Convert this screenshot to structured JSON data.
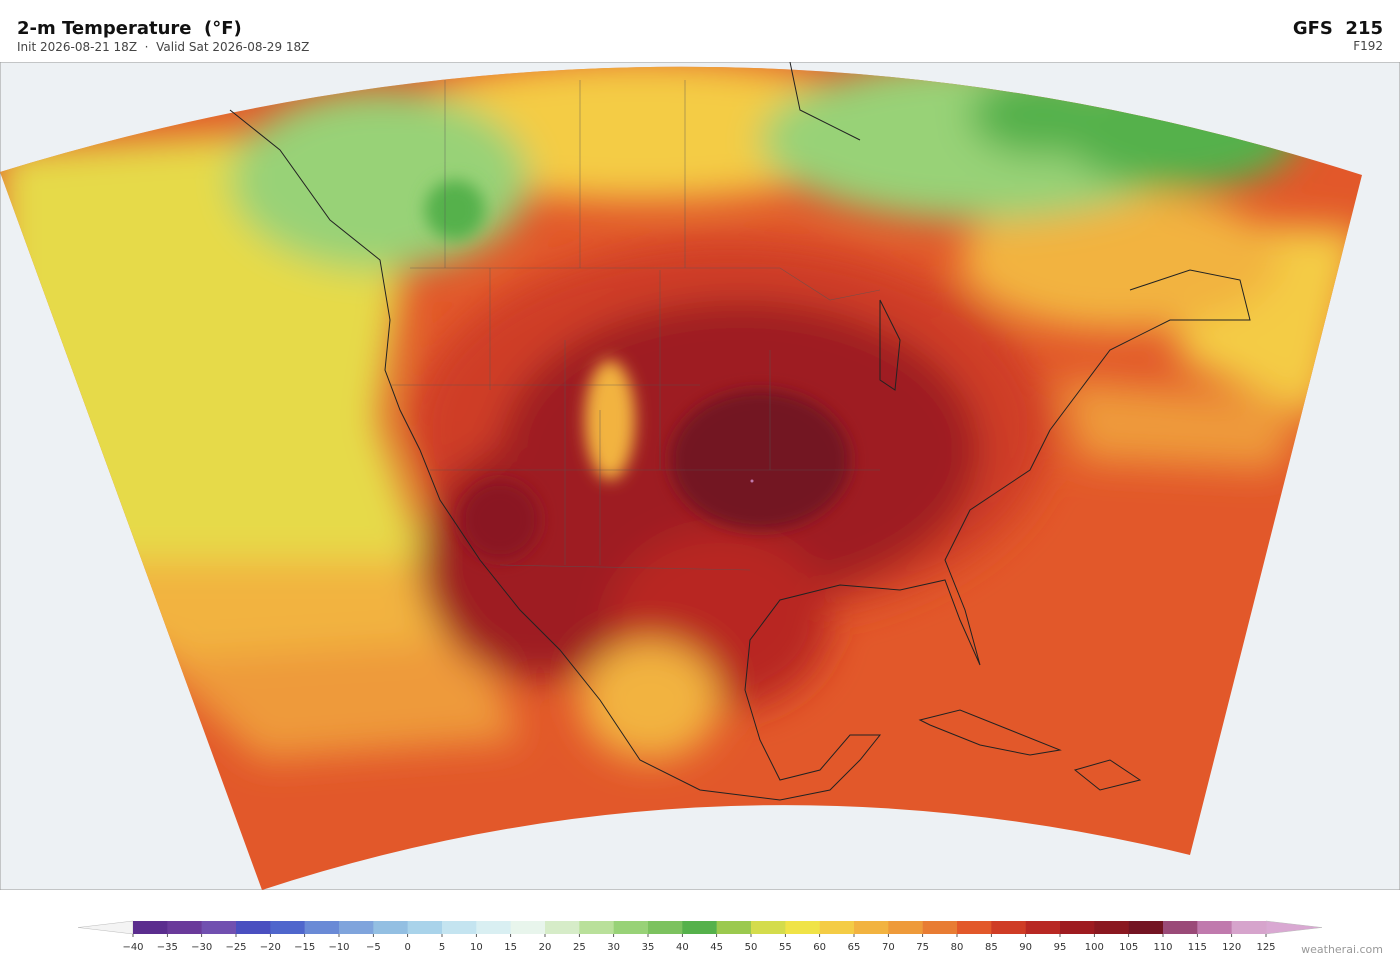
{
  "header": {
    "title": "2-m Temperature  (°F)",
    "subtitle": "Init 2026-08-21 18Z  ·  Valid Sat 2026-08-29 18Z",
    "model": "GFS  215",
    "forecast_hour": "F192"
  },
  "colorbar": {
    "ticks": [
      {
        "value": -40,
        "label": "−40"
      },
      {
        "value": -35,
        "label": "−35"
      },
      {
        "value": -30,
        "label": "−30"
      },
      {
        "value": -25,
        "label": "−25"
      },
      {
        "value": -20,
        "label": "−20"
      },
      {
        "value": -15,
        "label": "−15"
      },
      {
        "value": -10,
        "label": "−10"
      },
      {
        "value": -5,
        "label": "−5"
      },
      0,
      5,
      10,
      15,
      20,
      25,
      30,
      35,
      40,
      45,
      50,
      55,
      60,
      65,
      70,
      75,
      80,
      85,
      90,
      95,
      100,
      105,
      110,
      115,
      120,
      125
    ],
    "colors": [
      "#5b2d8e",
      "#6a3a9a",
      "#7150b0",
      "#4a4fc0",
      "#4f66cc",
      "#6a8ad6",
      "#7fa4dc",
      "#93bfe2",
      "#a9d3ea",
      "#c4e4f0",
      "#d9eff2",
      "#e8f5ec",
      "#d6ecc8",
      "#b9e09a",
      "#98d277",
      "#7cc25f",
      "#55b14b",
      "#9bc94e",
      "#d4dc4c",
      "#f0e347",
      "#f4cc45",
      "#f2b340",
      "#ee9a3a",
      "#e87c33",
      "#e2582a",
      "#cf3c25",
      "#b82823",
      "#9e1b20",
      "#8a1820",
      "#731422",
      "#9a4a78",
      "#c07aad",
      "#d6a4cc"
    ],
    "extend_low_color": "#f4f4f4",
    "extend_high_color": "#d9a8d2"
  },
  "watermark": "weatherai.com"
}
